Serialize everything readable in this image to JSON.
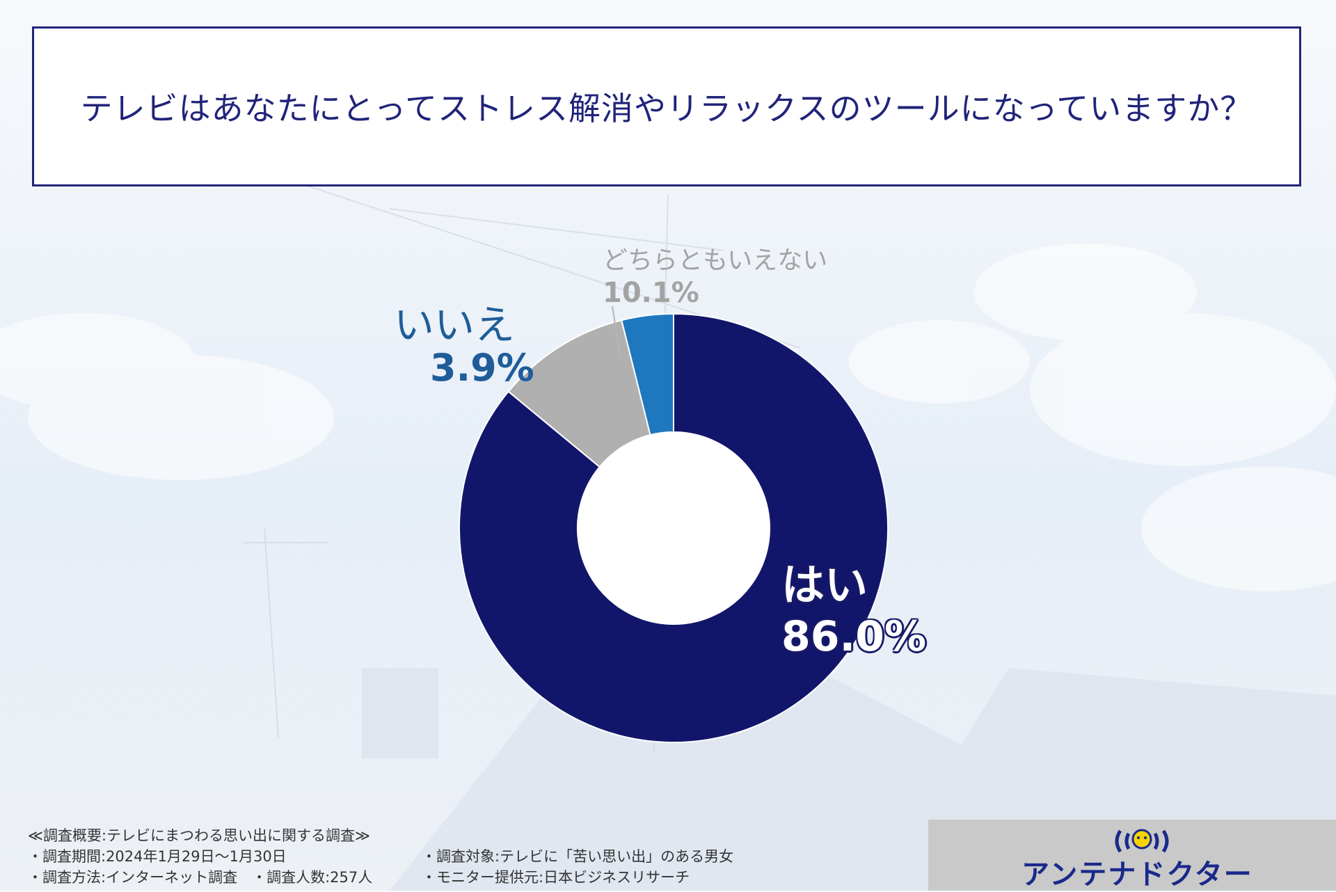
{
  "title": "テレビはあなたにとってストレス解消やリラックスのツールになっていますか？",
  "chart_data": {
    "type": "pie",
    "variant": "donut",
    "title": "テレビはあなたにとってストレス解消やリラックスのツールになっていますか？",
    "slices": [
      {
        "label": "はい",
        "value": 86.0,
        "display": "86.0%",
        "color": "#12166b"
      },
      {
        "label": "いいえ",
        "value": 3.9,
        "display": "3.9%",
        "color": "#1f78be"
      },
      {
        "label": "どちらともいえない",
        "value": 10.1,
        "display": "10.1%",
        "color": "#b0b0b0"
      }
    ],
    "start": "top",
    "direction": "clockwise"
  },
  "notes": {
    "summary": "≪調査概要:テレビにまつわる思い出に関する調査≫",
    "period": "・調査期間:2024年1月29日〜1月30日",
    "method": "・調査方法:インターネット調査　・調査人数:257人",
    "target": "・調査対象:テレビに「苦い思い出」のある男女",
    "provider": "・モニター提供元:日本ビジネスリサーチ"
  },
  "logo": {
    "text": "アンテナドクター",
    "icon": "antenna-mascot-icon"
  }
}
